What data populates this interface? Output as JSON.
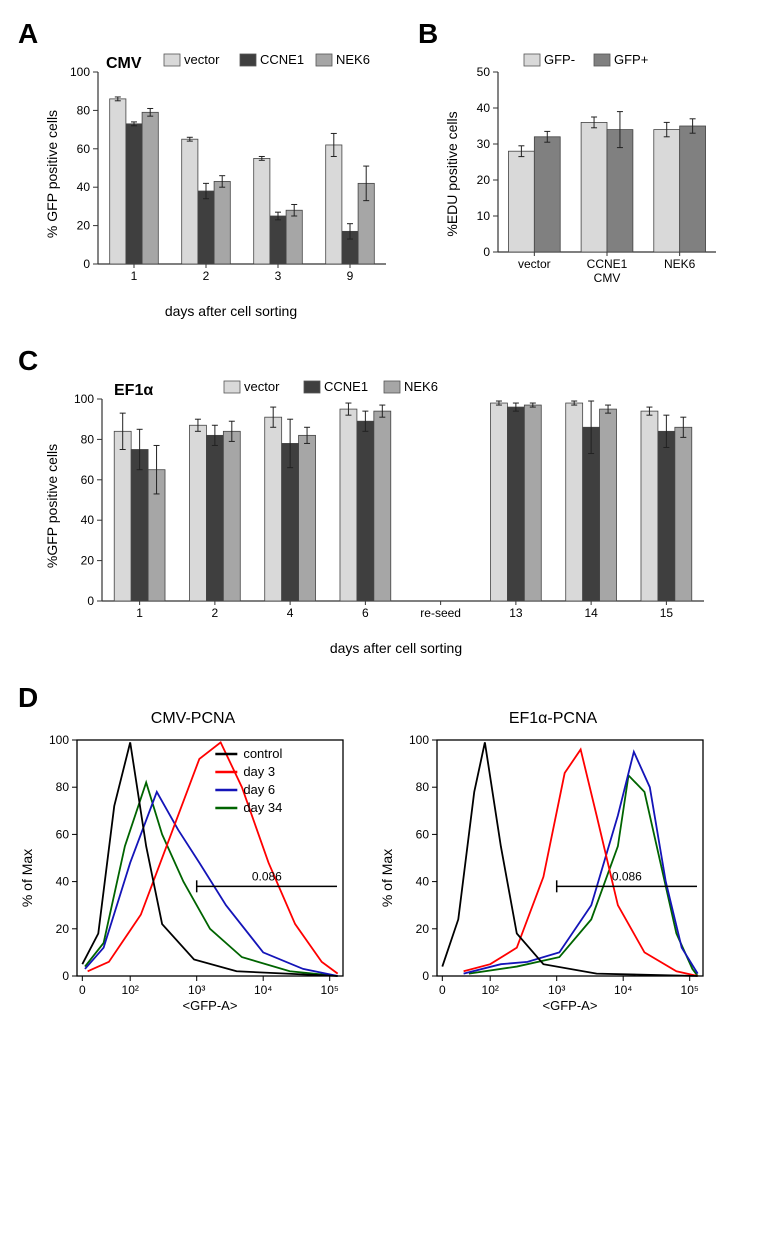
{
  "colors": {
    "vector": "#d9d9d9",
    "ccne1": "#3f3f3f",
    "nek6": "#a6a6a6",
    "gfp_neg": "#d9d9d9",
    "gfp_pos": "#808080",
    "axis": "#333333",
    "tick": "#333333",
    "curve_control": "#000000",
    "curve_day3": "#ff0000",
    "curve_day6": "#1414b8",
    "curve_day34": "#006400",
    "bg": "#ffffff"
  },
  "panelA": {
    "letter": "A",
    "title": "CMV",
    "ylabel": "% GFP positive cells",
    "xlabel": "days after cell sorting",
    "yticks": [
      0,
      20,
      40,
      60,
      80,
      100
    ],
    "ylim": [
      0,
      100
    ],
    "legend_items": [
      {
        "label": "vector",
        "color_key": "vector"
      },
      {
        "label": "CCNE1",
        "color_key": "ccne1"
      },
      {
        "label": "NEK6",
        "color_key": "nek6"
      }
    ],
    "categories": [
      "1",
      "2",
      "3",
      "9"
    ],
    "series": {
      "vector": {
        "values": [
          86,
          65,
          55,
          62
        ],
        "err": [
          1,
          1,
          1,
          6
        ]
      },
      "CCNE1": {
        "values": [
          73,
          38,
          25,
          17
        ],
        "err": [
          1,
          4,
          2,
          4
        ]
      },
      "NEK6": {
        "values": [
          79,
          43,
          28,
          42
        ],
        "err": [
          2,
          3,
          3,
          9
        ]
      }
    }
  },
  "panelB": {
    "letter": "B",
    "ylabel": "%EDU positive cells",
    "yticks": [
      0,
      10,
      20,
      30,
      40,
      50
    ],
    "ylim": [
      0,
      50
    ],
    "legend_items": [
      {
        "label": "GFP-",
        "color_key": "gfp_neg"
      },
      {
        "label": "GFP+",
        "color_key": "gfp_pos"
      }
    ],
    "categories": [
      "vector",
      "CCNE1\nCMV",
      "NEK6"
    ],
    "series": {
      "GFP-": {
        "values": [
          28,
          36,
          34
        ],
        "err": [
          1.5,
          1.5,
          2
        ]
      },
      "GFP+": {
        "values": [
          32,
          34,
          35
        ],
        "err": [
          1.5,
          5,
          2
        ]
      }
    }
  },
  "panelC": {
    "letter": "C",
    "title": "EF1α",
    "ylabel": "%GFP positive cells",
    "xlabel": "days after cell sorting",
    "yticks": [
      0,
      20,
      40,
      60,
      80,
      100
    ],
    "ylim": [
      0,
      100
    ],
    "legend_items": [
      {
        "label": "vector",
        "color_key": "vector"
      },
      {
        "label": "CCNE1",
        "color_key": "ccne1"
      },
      {
        "label": "NEK6",
        "color_key": "nek6"
      }
    ],
    "categories": [
      "1",
      "2",
      "4",
      "6",
      "re-seed",
      "13",
      "14",
      "15"
    ],
    "series": {
      "vector": {
        "values": [
          84,
          87,
          91,
          95,
          null,
          98,
          98,
          94
        ],
        "err": [
          9,
          3,
          5,
          3,
          0,
          1,
          1,
          2
        ]
      },
      "CCNE1": {
        "values": [
          75,
          82,
          78,
          89,
          null,
          96,
          86,
          84
        ],
        "err": [
          10,
          5,
          12,
          5,
          0,
          2,
          13,
          8
        ]
      },
      "NEK6": {
        "values": [
          65,
          84,
          82,
          94,
          null,
          97,
          95,
          86
        ],
        "err": [
          12,
          5,
          4,
          3,
          0,
          1,
          2,
          5
        ]
      }
    }
  },
  "panelD": {
    "letter": "D",
    "titles": [
      "CMV-PCNA",
      "EF1α-PCNA"
    ],
    "ylabel": "% of Max",
    "xlabel": "<GFP-A>",
    "yticks": [
      0,
      20,
      40,
      60,
      80,
      100
    ],
    "xticks_labels": [
      "0",
      "10²",
      "10³",
      "10⁴",
      "10⁵"
    ],
    "gate_label": "0.086",
    "legend_items": [
      {
        "label": "control",
        "color_key": "curve_control"
      },
      {
        "label": "day 3",
        "color_key": "curve_day3"
      },
      {
        "label": "day 6",
        "color_key": "curve_day6"
      },
      {
        "label": "day 34",
        "color_key": "curve_day34"
      }
    ],
    "left": {
      "curves": {
        "control": [
          [
            0.02,
            5
          ],
          [
            0.08,
            18
          ],
          [
            0.14,
            72
          ],
          [
            0.2,
            99
          ],
          [
            0.26,
            55
          ],
          [
            0.32,
            22
          ],
          [
            0.44,
            7
          ],
          [
            0.6,
            2
          ],
          [
            0.98,
            0
          ]
        ],
        "day34": [
          [
            0.03,
            4
          ],
          [
            0.1,
            14
          ],
          [
            0.18,
            55
          ],
          [
            0.26,
            82
          ],
          [
            0.32,
            60
          ],
          [
            0.4,
            40
          ],
          [
            0.5,
            20
          ],
          [
            0.62,
            8
          ],
          [
            0.8,
            2
          ],
          [
            0.98,
            0
          ]
        ],
        "day6": [
          [
            0.03,
            3
          ],
          [
            0.1,
            12
          ],
          [
            0.2,
            48
          ],
          [
            0.3,
            78
          ],
          [
            0.38,
            62
          ],
          [
            0.46,
            48
          ],
          [
            0.56,
            30
          ],
          [
            0.7,
            10
          ],
          [
            0.85,
            3
          ],
          [
            0.98,
            0
          ]
        ],
        "day3": [
          [
            0.04,
            2
          ],
          [
            0.12,
            6
          ],
          [
            0.24,
            26
          ],
          [
            0.36,
            62
          ],
          [
            0.46,
            92
          ],
          [
            0.54,
            99
          ],
          [
            0.62,
            80
          ],
          [
            0.72,
            48
          ],
          [
            0.82,
            22
          ],
          [
            0.92,
            6
          ],
          [
            0.98,
            1
          ]
        ]
      },
      "gate_x": 0.45
    },
    "right": {
      "curves": {
        "control": [
          [
            0.02,
            4
          ],
          [
            0.08,
            24
          ],
          [
            0.14,
            78
          ],
          [
            0.18,
            99
          ],
          [
            0.24,
            55
          ],
          [
            0.3,
            18
          ],
          [
            0.4,
            5
          ],
          [
            0.6,
            1
          ],
          [
            0.98,
            0
          ]
        ],
        "day3": [
          [
            0.1,
            2
          ],
          [
            0.2,
            5
          ],
          [
            0.3,
            12
          ],
          [
            0.4,
            42
          ],
          [
            0.48,
            86
          ],
          [
            0.54,
            96
          ],
          [
            0.6,
            68
          ],
          [
            0.68,
            30
          ],
          [
            0.78,
            10
          ],
          [
            0.9,
            2
          ],
          [
            0.98,
            0
          ]
        ],
        "day6": [
          [
            0.1,
            1
          ],
          [
            0.24,
            5
          ],
          [
            0.34,
            6
          ],
          [
            0.46,
            10
          ],
          [
            0.58,
            30
          ],
          [
            0.68,
            68
          ],
          [
            0.74,
            95
          ],
          [
            0.8,
            80
          ],
          [
            0.86,
            40
          ],
          [
            0.92,
            12
          ],
          [
            0.98,
            1
          ]
        ],
        "day34": [
          [
            0.12,
            1
          ],
          [
            0.3,
            4
          ],
          [
            0.46,
            8
          ],
          [
            0.58,
            24
          ],
          [
            0.68,
            55
          ],
          [
            0.72,
            85
          ],
          [
            0.78,
            78
          ],
          [
            0.84,
            48
          ],
          [
            0.9,
            18
          ],
          [
            0.96,
            3
          ],
          [
            0.98,
            0
          ]
        ]
      },
      "gate_x": 0.45
    }
  },
  "style": {
    "bar_stroke": "#444444",
    "err_stroke": "#222222",
    "font_axis_size": 14,
    "font_tick_size": 12,
    "font_title_size": 16
  }
}
